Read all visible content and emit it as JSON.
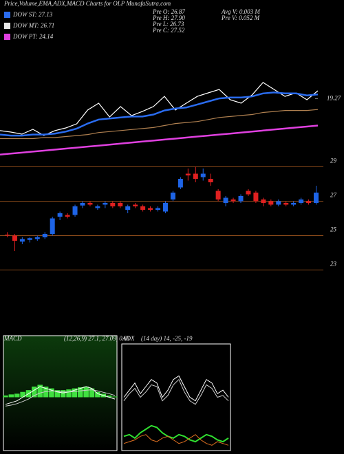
{
  "header": {
    "title": "Price,Volume,EMA,ADX,MACD Charts for OLP MunafaSutra.com",
    "legend": [
      {
        "name": "DOW ST: 27.13",
        "color": "#2a6cf0"
      },
      {
        "name": "DOW MT: 26.71",
        "color": "#e8e8e8"
      },
      {
        "name": "DOW PT: 24.14",
        "color": "#e040e0"
      }
    ],
    "stats": [
      "Pre  O: 26.87",
      "Pre  H: 27.90",
      "Pre  L: 26.73",
      "Pre  C: 27.52",
      "Avg  V: 0.003  M",
      "Pre  V: 0.052  M"
    ]
  },
  "chart_data": [
    {
      "type": "line",
      "ylim": [
        13,
        25
      ],
      "yticks": [
        19.27
      ],
      "series": [
        {
          "name": "Price",
          "color": "#ffffff",
          "width": 1.2,
          "values": [
            16.09,
            15.95,
            15.74,
            16.22,
            15.61,
            16.09,
            16.36,
            16.77,
            18.14,
            18.83,
            17.46,
            18.49,
            17.59,
            18.01,
            18.49,
            19.51,
            18.14,
            18.83,
            19.51,
            19.86,
            20.2,
            19.17,
            18.83,
            19.65,
            20.89,
            20.2,
            19.51,
            19.86,
            19.17,
            20.06
          ]
        },
        {
          "name": "EMA short",
          "color": "#2a6cf0",
          "width": 2.5,
          "values": [
            15.7,
            15.6,
            15.6,
            15.7,
            15.7,
            15.8,
            16.0,
            16.3,
            16.8,
            17.2,
            17.3,
            17.4,
            17.5,
            17.5,
            17.7,
            18.1,
            18.3,
            18.4,
            18.7,
            19.0,
            19.3,
            19.4,
            19.4,
            19.5,
            19.8,
            19.9,
            19.8,
            19.8,
            19.6,
            19.7
          ]
        },
        {
          "name": "EMA mid",
          "color": "#b08050",
          "width": 1.2,
          "values": [
            15.3,
            15.3,
            15.3,
            15.3,
            15.4,
            15.4,
            15.5,
            15.6,
            15.7,
            15.9,
            16.0,
            16.1,
            16.2,
            16.3,
            16.4,
            16.6,
            16.8,
            16.9,
            17.0,
            17.2,
            17.4,
            17.5,
            17.6,
            17.7,
            17.9,
            18.0,
            18.1,
            18.1,
            18.1,
            18.2
          ]
        },
        {
          "name": "EMA long",
          "color": "#e040e0",
          "width": 2.5,
          "values": [
            13.7,
            13.8,
            13.9,
            14.0,
            14.1,
            14.2,
            14.3,
            14.4,
            14.5,
            14.6,
            14.7,
            14.8,
            14.9,
            15.0,
            15.1,
            15.2,
            15.3,
            15.4,
            15.5,
            15.6,
            15.7,
            15.8,
            15.9,
            16.0,
            16.1,
            16.2,
            16.3,
            16.4,
            16.5,
            16.6
          ]
        }
      ]
    },
    {
      "type": "candlestick",
      "ylim": [
        22.7,
        29.1
      ],
      "yticks": [
        23,
        25,
        27,
        29
      ],
      "grid": true,
      "grid_color": "#8b4a1a",
      "up_color": "#1e64e6",
      "down_color": "#e02020",
      "open": [
        25.05,
        25.0,
        24.65,
        24.75,
        24.8,
        24.9,
        25.1,
        26.1,
        26.2,
        26.2,
        26.75,
        26.9,
        26.6,
        26.8,
        26.9,
        26.9,
        26.5,
        26.8,
        26.7,
        26.6,
        26.5,
        26.4,
        27.1,
        27.8,
        28.6,
        28.6,
        28.4,
        28.3,
        27.6,
        26.9,
        27.1,
        27.0,
        27.6,
        27.5,
        27.1,
        27.0,
        26.8,
        26.9,
        26.8,
        26.9,
        27.0,
        26.9
      ],
      "high": [
        25.2,
        25.1,
        24.9,
        24.9,
        25.0,
        25.2,
        26.1,
        26.4,
        26.3,
        26.8,
        27.0,
        27.0,
        26.8,
        27.0,
        27.0,
        27.0,
        26.8,
        26.9,
        26.8,
        26.7,
        26.7,
        27.0,
        27.6,
        28.4,
        28.9,
        29.0,
        28.9,
        28.6,
        27.7,
        27.3,
        27.2,
        27.4,
        27.7,
        27.6,
        27.2,
        27.1,
        27.1,
        27.0,
        27.0,
        27.2,
        27.1,
        27.9
      ],
      "low": [
        24.9,
        24.1,
        24.5,
        24.6,
        24.7,
        24.8,
        25.0,
        25.9,
        26.0,
        26.1,
        26.6,
        26.7,
        26.5,
        26.6,
        26.6,
        26.6,
        26.3,
        26.6,
        26.4,
        26.4,
        26.4,
        26.3,
        27.0,
        27.7,
        28.2,
        28.1,
        28.2,
        27.9,
        27.0,
        26.7,
        26.9,
        26.9,
        27.3,
        26.9,
        26.7,
        26.7,
        26.7,
        26.7,
        26.7,
        26.8,
        26.8,
        26.8
      ],
      "close": [
        25.0,
        24.7,
        24.8,
        24.85,
        24.9,
        25.1,
        26.0,
        26.3,
        26.1,
        26.7,
        26.9,
        26.8,
        26.7,
        26.9,
        26.7,
        26.7,
        26.7,
        26.7,
        26.5,
        26.5,
        26.6,
        26.9,
        27.5,
        28.3,
        28.5,
        28.3,
        28.6,
        28.1,
        27.1,
        27.2,
        27.0,
        27.3,
        27.4,
        27.0,
        26.9,
        26.8,
        27.0,
        26.8,
        26.9,
        27.1,
        26.9,
        27.5
      ]
    },
    {
      "type": "line",
      "title": "MACD",
      "subtitle": "(12,26,9) 27.1, 27.09, 0.01",
      "ylim": [
        -1.5,
        1.5
      ],
      "series": [
        {
          "name": "Histogram",
          "color": "#40e040",
          "style": "histogram",
          "values": [
            0.05,
            0.08,
            0.1,
            0.15,
            0.2,
            0.3,
            0.35,
            0.3,
            0.25,
            0.2,
            0.2,
            0.22,
            0.25,
            0.28,
            0.3,
            0.25,
            0.15,
            0.1,
            0.05,
            0.02
          ]
        },
        {
          "name": "MACD line",
          "color": "#ffffff",
          "width": 1,
          "values": [
            -0.2,
            -0.15,
            -0.1,
            0.0,
            0.1,
            0.2,
            0.3,
            0.25,
            0.2,
            0.15,
            0.12,
            0.15,
            0.2,
            0.25,
            0.3,
            0.25,
            0.1,
            0.05,
            0.0,
            -0.05
          ]
        },
        {
          "name": "Signal line",
          "color": "#cfcfcf",
          "width": 1,
          "values": [
            -0.25,
            -0.22,
            -0.18,
            -0.12,
            -0.05,
            0.05,
            0.12,
            0.16,
            0.18,
            0.17,
            0.15,
            0.15,
            0.16,
            0.18,
            0.2,
            0.21,
            0.18,
            0.14,
            0.1,
            0.05
          ]
        }
      ]
    },
    {
      "type": "line",
      "title": "ADX",
      "subtitle": "(14 day) 14, -25, -19",
      "ylim": [
        0,
        60
      ],
      "series": [
        {
          "name": "DI plus",
          "color": "#ffffff",
          "width": 1,
          "values": [
            30,
            34,
            38,
            32,
            36,
            40,
            38,
            30,
            34,
            40,
            42,
            36,
            30,
            28,
            34,
            40,
            38,
            32,
            34,
            30
          ]
        },
        {
          "name": "DI minus",
          "color": "#d0d0d0",
          "width": 1,
          "values": [
            28,
            32,
            35,
            30,
            33,
            37,
            36,
            28,
            31,
            37,
            40,
            33,
            28,
            26,
            31,
            37,
            35,
            30,
            31,
            28
          ]
        },
        {
          "name": "ADX",
          "color": "#30e030",
          "width": 2,
          "values": [
            8,
            9,
            7,
            10,
            12,
            14,
            13,
            10,
            8,
            7,
            9,
            8,
            6,
            5,
            7,
            9,
            8,
            6,
            5,
            7
          ]
        },
        {
          "name": "DX",
          "color": "#e07020",
          "width": 1,
          "values": [
            4,
            5,
            6,
            8,
            9,
            6,
            5,
            7,
            8,
            6,
            4,
            5,
            7,
            9,
            6,
            4,
            3,
            5,
            4,
            3
          ]
        }
      ]
    }
  ]
}
